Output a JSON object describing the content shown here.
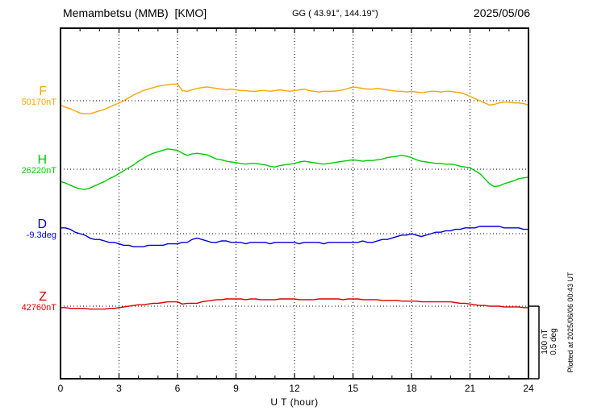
{
  "header": {
    "station": "Memambetsu (MMB)  [KMO]",
    "coordinates": "GG ( 43.91°, 144.19°)",
    "date": "2025/05/06"
  },
  "xaxis": {
    "label": "U T (hour)",
    "ticks": [
      0,
      3,
      6,
      9,
      12,
      15,
      18,
      21,
      24
    ]
  },
  "scale": {
    "nT_label": "100 nT",
    "deg_label": "0.5 deg"
  },
  "plotted_at": "Plotted at 2025/06/06 00:43 UT",
  "chart_data": {
    "type": "line",
    "title": "Memambetsu (MMB) [KMO] magnetogram 2025/05/06",
    "xlabel": "U T (hour)",
    "x_range": [
      0,
      24
    ],
    "x_step": 0.25,
    "x_unit": "hour UT",
    "grid": "dotted vertical lines every 3 hours; dotted horizontal baseline per component",
    "scale_divisions": {
      "nT_per_div": 100,
      "deg_per_div": 0.5
    },
    "series": [
      {
        "name": "F",
        "unit": "nT",
        "color": "#ffa500",
        "baseline": 50170,
        "baseline_label": "50170nT",
        "values": [
          -6,
          -9,
          -11,
          -14,
          -17,
          -18,
          -18,
          -16,
          -14,
          -12,
          -9,
          -6,
          -3,
          0,
          4,
          8,
          11,
          14,
          16,
          18,
          20,
          21,
          22,
          23,
          23,
          14,
          13,
          15,
          17,
          18,
          19,
          18,
          17,
          16,
          15,
          16,
          15,
          14,
          14,
          13,
          13,
          14,
          14,
          13,
          14,
          15,
          14,
          13,
          14,
          15,
          16,
          14,
          13,
          12,
          13,
          13,
          13,
          14,
          15,
          17,
          19,
          18,
          17,
          16,
          16,
          17,
          16,
          15,
          14,
          13,
          13,
          12,
          13,
          12,
          11,
          12,
          13,
          13,
          12,
          13,
          13,
          12,
          11,
          9,
          6,
          3,
          0,
          -3,
          -6,
          -5,
          -3,
          -2,
          -2,
          -3,
          -3,
          -4,
          -6
        ]
      },
      {
        "name": "H",
        "unit": "nT",
        "color": "#00cc00",
        "baseline": 26220,
        "baseline_label": "26220nT",
        "values": [
          -17,
          -19,
          -22,
          -25,
          -27,
          -28,
          -26,
          -23,
          -20,
          -17,
          -13,
          -10,
          -6,
          -2,
          2,
          6,
          11,
          15,
          19,
          22,
          24,
          26,
          28,
          27,
          26,
          22,
          19,
          21,
          22,
          21,
          20,
          17,
          14,
          13,
          11,
          10,
          9,
          8,
          7,
          8,
          8,
          7,
          6,
          4,
          3,
          5,
          6,
          7,
          8,
          10,
          11,
          10,
          9,
          8,
          7,
          8,
          9,
          10,
          11,
          12,
          13,
          12,
          11,
          12,
          12,
          13,
          14,
          16,
          17,
          18,
          19,
          18,
          16,
          13,
          11,
          10,
          9,
          8,
          8,
          7,
          7,
          6,
          4,
          3,
          2,
          -2,
          -6,
          -13,
          -20,
          -24,
          -23,
          -20,
          -18,
          -16,
          -13,
          -12,
          -11
        ]
      },
      {
        "name": "D",
        "unit": "deg",
        "color": "#0000dd",
        "baseline": -9.3,
        "baseline_label": "-9.3deg",
        "values": [
          0.04,
          0.04,
          0.03,
          0.01,
          0.0,
          -0.01,
          -0.03,
          -0.04,
          -0.04,
          -0.05,
          -0.06,
          -0.06,
          -0.07,
          -0.08,
          -0.08,
          -0.09,
          -0.09,
          -0.09,
          -0.08,
          -0.08,
          -0.08,
          -0.08,
          -0.07,
          -0.07,
          -0.07,
          -0.06,
          -0.06,
          -0.04,
          -0.03,
          -0.04,
          -0.05,
          -0.06,
          -0.06,
          -0.05,
          -0.05,
          -0.06,
          -0.06,
          -0.06,
          -0.07,
          -0.06,
          -0.06,
          -0.06,
          -0.06,
          -0.07,
          -0.06,
          -0.06,
          -0.06,
          -0.06,
          -0.06,
          -0.07,
          -0.06,
          -0.06,
          -0.06,
          -0.06,
          -0.07,
          -0.06,
          -0.06,
          -0.06,
          -0.06,
          -0.06,
          -0.06,
          -0.06,
          -0.05,
          -0.06,
          -0.06,
          -0.05,
          -0.04,
          -0.04,
          -0.03,
          -0.02,
          -0.01,
          -0.01,
          0.0,
          -0.01,
          -0.02,
          -0.01,
          0.0,
          0.01,
          0.01,
          0.02,
          0.02,
          0.03,
          0.03,
          0.04,
          0.04,
          0.04,
          0.05,
          0.05,
          0.05,
          0.05,
          0.05,
          0.04,
          0.04,
          0.04,
          0.04,
          0.03,
          0.03
        ]
      },
      {
        "name": "Z",
        "unit": "nT",
        "color": "#dd0000",
        "baseline": 42760,
        "baseline_label": "42760nT",
        "values": [
          -2,
          -2,
          -3,
          -3,
          -3,
          -3,
          -4,
          -4,
          -4,
          -4,
          -3,
          -3,
          -2,
          -1,
          0,
          1,
          2,
          2,
          3,
          4,
          4,
          5,
          6,
          6,
          6,
          3,
          4,
          4,
          4,
          6,
          7,
          8,
          9,
          9,
          10,
          10,
          10,
          10,
          9,
          10,
          10,
          9,
          9,
          9,
          9,
          10,
          10,
          10,
          10,
          9,
          9,
          9,
          9,
          10,
          10,
          10,
          10,
          10,
          9,
          10,
          10,
          10,
          9,
          9,
          9,
          9,
          8,
          8,
          8,
          8,
          7,
          7,
          7,
          7,
          6,
          6,
          6,
          6,
          6,
          6,
          6,
          5,
          4,
          4,
          3,
          2,
          1,
          1,
          0,
          0,
          0,
          -1,
          -1,
          -1,
          -1,
          -2,
          -2
        ]
      }
    ]
  }
}
